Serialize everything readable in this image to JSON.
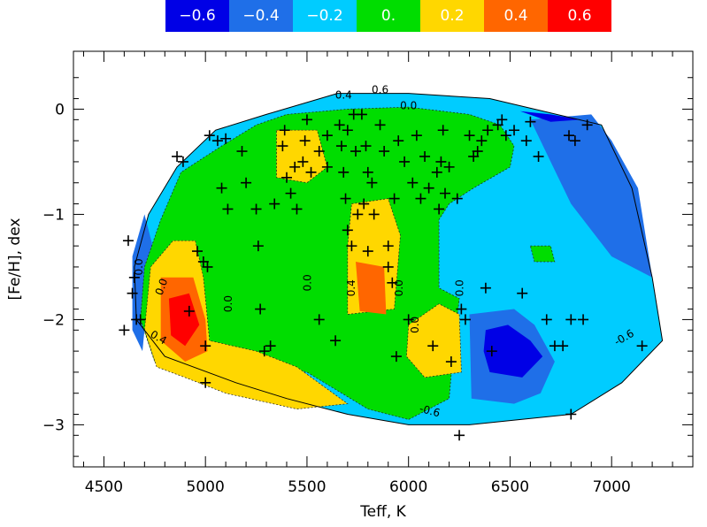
{
  "chart_data": {
    "type": "heatmap",
    "xlabel": "Teff, K",
    "ylabel": "[Fe/H], dex",
    "xlim": [
      4350,
      7400
    ],
    "ylim": [
      -3.4,
      0.55
    ],
    "x_ticks": [
      4500,
      5000,
      5500,
      6000,
      6500,
      7000
    ],
    "x_tick_labels": [
      "4500",
      "5000",
      "5500",
      "6000",
      "6500",
      "7000"
    ],
    "y_ticks": [
      0,
      -1,
      -2,
      -3
    ],
    "y_tick_labels": [
      "0",
      "−1",
      "−2",
      "−3"
    ],
    "legend": [
      {
        "label": "−0.6",
        "color": "#0000e6"
      },
      {
        "label": "−0.4",
        "color": "#1f6fe8"
      },
      {
        "label": "−0.2",
        "color": "#00ccff"
      },
      {
        "label": "0.",
        "color": "#00dd00"
      },
      {
        "label": "0.2",
        "color": "#ffd700"
      },
      {
        "label": "0.4",
        "color": "#ff6600"
      },
      {
        "label": "0.6",
        "color": "#ff0000"
      }
    ],
    "regions": [
      {
        "level": -0.2,
        "points": [
          [
            4660,
            -2.0
          ],
          [
            4650,
            -1.5
          ],
          [
            4720,
            -1.0
          ],
          [
            4860,
            -0.55
          ],
          [
            5050,
            -0.2
          ],
          [
            5300,
            -0.05
          ],
          [
            5650,
            0.15
          ],
          [
            6000,
            0.15
          ],
          [
            6400,
            0.1
          ],
          [
            6950,
            -0.15
          ],
          [
            7100,
            -0.75
          ],
          [
            7200,
            -1.6
          ],
          [
            7250,
            -2.2
          ],
          [
            7050,
            -2.6
          ],
          [
            6800,
            -2.9
          ],
          [
            6300,
            -3.0
          ],
          [
            6000,
            -3.0
          ],
          [
            5700,
            -2.9
          ],
          [
            5400,
            -2.75
          ],
          [
            5150,
            -2.6
          ],
          [
            4800,
            -2.35
          ]
        ]
      },
      {
        "level": -0.4,
        "points": [
          [
            4640,
            -2.1
          ],
          [
            4640,
            -1.4
          ],
          [
            4700,
            -1.0
          ],
          [
            4740,
            -1.3
          ],
          [
            4690,
            -2.3
          ]
        ]
      },
      {
        "level": -0.4,
        "points": [
          [
            6600,
            -0.1
          ],
          [
            6900,
            -0.05
          ],
          [
            7000,
            -0.3
          ],
          [
            7130,
            -0.75
          ],
          [
            7200,
            -1.6
          ],
          [
            7000,
            -1.4
          ],
          [
            6800,
            -0.9
          ],
          [
            6700,
            -0.5
          ]
        ]
      },
      {
        "level": -0.4,
        "points": [
          [
            6300,
            -1.95
          ],
          [
            6520,
            -1.9
          ],
          [
            6620,
            -2.05
          ],
          [
            6720,
            -2.4
          ],
          [
            6650,
            -2.7
          ],
          [
            6520,
            -2.8
          ],
          [
            6310,
            -2.75
          ]
        ]
      },
      {
        "level": -0.6,
        "points": [
          [
            6550,
            -0.02
          ],
          [
            6700,
            -0.05
          ],
          [
            6850,
            -0.1
          ],
          [
            6700,
            -0.12
          ]
        ]
      },
      {
        "level": -0.6,
        "points": [
          [
            6380,
            -2.1
          ],
          [
            6490,
            -2.05
          ],
          [
            6600,
            -2.2
          ],
          [
            6660,
            -2.35
          ],
          [
            6560,
            -2.55
          ],
          [
            6400,
            -2.5
          ],
          [
            6370,
            -2.3
          ]
        ]
      },
      {
        "level": 0.0,
        "points": [
          [
            4680,
            -2.0
          ],
          [
            4700,
            -1.5
          ],
          [
            4780,
            -1.05
          ],
          [
            4880,
            -0.6
          ],
          [
            5080,
            -0.35
          ],
          [
            5250,
            -0.15
          ],
          [
            5400,
            -0.05
          ],
          [
            5700,
            0.0
          ],
          [
            6000,
            0.02
          ],
          [
            6300,
            -0.05
          ],
          [
            6450,
            -0.15
          ],
          [
            6520,
            -0.35
          ],
          [
            6500,
            -0.55
          ],
          [
            6320,
            -0.75
          ],
          [
            6200,
            -0.9
          ],
          [
            6150,
            -1.05
          ],
          [
            6150,
            -1.7
          ],
          [
            6250,
            -1.8
          ],
          [
            6220,
            -2.3
          ],
          [
            6200,
            -2.75
          ],
          [
            6000,
            -2.95
          ],
          [
            5800,
            -2.85
          ],
          [
            5500,
            -2.5
          ],
          [
            5300,
            -2.4
          ],
          [
            5100,
            -2.4
          ],
          [
            4900,
            -2.5
          ],
          [
            4750,
            -2.4
          ]
        ]
      },
      {
        "level": 0.2,
        "points": [
          [
            4700,
            -2.1
          ],
          [
            4730,
            -1.5
          ],
          [
            4840,
            -1.25
          ],
          [
            4950,
            -1.25
          ],
          [
            4990,
            -1.6
          ],
          [
            5020,
            -2.2
          ],
          [
            5250,
            -2.3
          ],
          [
            5450,
            -2.45
          ],
          [
            5700,
            -2.8
          ],
          [
            5450,
            -2.85
          ],
          [
            5100,
            -2.7
          ],
          [
            4900,
            -2.55
          ],
          [
            4760,
            -2.45
          ]
        ]
      },
      {
        "level": 0.2,
        "points": [
          [
            5350,
            -0.2
          ],
          [
            5550,
            -0.2
          ],
          [
            5600,
            -0.55
          ],
          [
            5500,
            -0.7
          ],
          [
            5350,
            -0.65
          ]
        ]
      },
      {
        "level": 0.2,
        "points": [
          [
            5720,
            -0.9
          ],
          [
            5900,
            -0.85
          ],
          [
            5960,
            -1.2
          ],
          [
            5930,
            -1.9
          ],
          [
            5700,
            -1.95
          ],
          [
            5700,
            -1.3
          ]
        ]
      },
      {
        "level": 0.2,
        "points": [
          [
            6000,
            -2.05
          ],
          [
            6150,
            -1.85
          ],
          [
            6250,
            -1.95
          ],
          [
            6260,
            -2.5
          ],
          [
            6080,
            -2.55
          ],
          [
            5990,
            -2.35
          ]
        ]
      },
      {
        "level": 0.4,
        "points": [
          [
            4780,
            -1.6
          ],
          [
            4940,
            -1.6
          ],
          [
            5000,
            -2.0
          ],
          [
            5010,
            -2.3
          ],
          [
            4900,
            -2.4
          ],
          [
            4780,
            -2.2
          ]
        ]
      },
      {
        "level": 0.4,
        "points": [
          [
            5740,
            -1.45
          ],
          [
            5880,
            -1.5
          ],
          [
            5890,
            -1.95
          ],
          [
            5760,
            -1.92
          ]
        ]
      },
      {
        "level": 0.6,
        "points": [
          [
            4820,
            -1.8
          ],
          [
            4920,
            -1.75
          ],
          [
            4970,
            -2.05
          ],
          [
            4900,
            -2.25
          ],
          [
            4830,
            -2.15
          ]
        ]
      },
      {
        "level": 0.0,
        "points": [
          [
            6600,
            -1.3
          ],
          [
            6700,
            -1.3
          ],
          [
            6720,
            -1.45
          ],
          [
            6620,
            -1.45
          ]
        ]
      }
    ],
    "points": [
      [
        4620,
        -1.25
      ],
      [
        4640,
        -1.75
      ],
      [
        4650,
        -1.6
      ],
      [
        4660,
        -2.0
      ],
      [
        4600,
        -2.1
      ],
      [
        4680,
        -2.0
      ],
      [
        4860,
        -0.45
      ],
      [
        4890,
        -0.5
      ],
      [
        4920,
        -1.92
      ],
      [
        4960,
        -1.35
      ],
      [
        4990,
        -1.45
      ],
      [
        5010,
        -1.5
      ],
      [
        5000,
        -2.25
      ],
      [
        5000,
        -2.6
      ],
      [
        5020,
        -0.25
      ],
      [
        5060,
        -0.3
      ],
      [
        5080,
        -0.75
      ],
      [
        5100,
        -0.28
      ],
      [
        5110,
        -0.95
      ],
      [
        5180,
        -0.4
      ],
      [
        5200,
        -0.7
      ],
      [
        5250,
        -0.95
      ],
      [
        5260,
        -1.3
      ],
      [
        5270,
        -1.9
      ],
      [
        5290,
        -2.3
      ],
      [
        5320,
        -2.25
      ],
      [
        5340,
        -0.9
      ],
      [
        5380,
        -0.35
      ],
      [
        5390,
        -0.2
      ],
      [
        5400,
        -0.65
      ],
      [
        5420,
        -0.8
      ],
      [
        5440,
        -0.55
      ],
      [
        5450,
        -0.95
      ],
      [
        5480,
        -0.5
      ],
      [
        5490,
        -0.3
      ],
      [
        5500,
        -0.1
      ],
      [
        5520,
        -0.6
      ],
      [
        5560,
        -0.4
      ],
      [
        5560,
        -2.0
      ],
      [
        5600,
        -0.25
      ],
      [
        5600,
        -0.55
      ],
      [
        5640,
        -2.2
      ],
      [
        5660,
        -0.15
      ],
      [
        5670,
        -0.35
      ],
      [
        5680,
        -0.6
      ],
      [
        5690,
        -0.85
      ],
      [
        5700,
        -0.2
      ],
      [
        5700,
        -1.15
      ],
      [
        5720,
        -1.3
      ],
      [
        5730,
        -0.05
      ],
      [
        5740,
        -0.4
      ],
      [
        5750,
        -1.0
      ],
      [
        5770,
        -0.05
      ],
      [
        5780,
        -0.9
      ],
      [
        5790,
        -0.35
      ],
      [
        5800,
        -0.6
      ],
      [
        5800,
        -1.35
      ],
      [
        5820,
        -0.7
      ],
      [
        5830,
        -1.0
      ],
      [
        5860,
        -0.15
      ],
      [
        5880,
        -0.4
      ],
      [
        5900,
        -1.3
      ],
      [
        5900,
        -1.5
      ],
      [
        5920,
        -1.65
      ],
      [
        5930,
        -0.85
      ],
      [
        5940,
        -2.35
      ],
      [
        5950,
        -0.3
      ],
      [
        5980,
        -0.5
      ],
      [
        6000,
        -2.0
      ],
      [
        6020,
        -0.7
      ],
      [
        6040,
        -0.25
      ],
      [
        6060,
        -0.85
      ],
      [
        6080,
        -0.45
      ],
      [
        6100,
        -0.75
      ],
      [
        6120,
        -2.25
      ],
      [
        6140,
        -0.6
      ],
      [
        6150,
        -0.95
      ],
      [
        6160,
        -0.5
      ],
      [
        6170,
        -0.2
      ],
      [
        6180,
        -0.8
      ],
      [
        6200,
        -0.55
      ],
      [
        6210,
        -2.4
      ],
      [
        6240,
        -0.85
      ],
      [
        6260,
        -1.9
      ],
      [
        6280,
        -2.0
      ],
      [
        6300,
        -0.25
      ],
      [
        6320,
        -0.45
      ],
      [
        6340,
        -0.4
      ],
      [
        6360,
        -0.3
      ],
      [
        6380,
        -1.7
      ],
      [
        6390,
        -0.2
      ],
      [
        6410,
        -2.3
      ],
      [
        6440,
        -0.15
      ],
      [
        6460,
        -0.1
      ],
      [
        6480,
        -0.25
      ],
      [
        6520,
        -0.2
      ],
      [
        6560,
        -1.75
      ],
      [
        6580,
        -0.3
      ],
      [
        6600,
        -0.12
      ],
      [
        6640,
        -0.45
      ],
      [
        6680,
        -2.0
      ],
      [
        6720,
        -2.25
      ],
      [
        6760,
        -2.25
      ],
      [
        6790,
        -0.25
      ],
      [
        6800,
        -2.0
      ],
      [
        6800,
        -2.9
      ],
      [
        6820,
        -0.3
      ],
      [
        6860,
        -2.0
      ],
      [
        6880,
        -0.15
      ],
      [
        7150,
        -2.25
      ],
      [
        6250,
        -3.1
      ]
    ],
    "contour_labels": [
      {
        "text": "0.0",
        "x": 5520,
        "y": -1.65,
        "rot": -90
      },
      {
        "text": "0.0",
        "x": 5130,
        "y": -1.85,
        "rot": -90
      },
      {
        "text": "0.0",
        "x": 5970,
        "y": -1.7,
        "rot": -90
      },
      {
        "text": "0.0",
        "x": 6050,
        "y": -2.05,
        "rot": -90
      },
      {
        "text": "0.0",
        "x": 6270,
        "y": -1.7,
        "rot": -90
      },
      {
        "text": "0.0",
        "x": 6000,
        "y": 0.0,
        "rot": 0
      },
      {
        "text": "0.4",
        "x": 5735,
        "y": -1.7,
        "rot": -90
      },
      {
        "text": "0.0",
        "x": 4800,
        "y": -1.7,
        "rot": -70
      },
      {
        "text": "0.4",
        "x": 4760,
        "y": -2.2,
        "rot": 30
      },
      {
        "text": "0.0",
        "x": 4690,
        "y": -1.5,
        "rot": -90
      },
      {
        "text": "0.4",
        "x": 5680,
        "y": 0.1,
        "rot": 0
      },
      {
        "text": "0.6",
        "x": 5860,
        "y": 0.15,
        "rot": 0
      },
      {
        "text": "-0.6",
        "x": 7070,
        "y": -2.2,
        "rot": -30
      },
      {
        "text": "-0.6",
        "x": 6100,
        "y": -2.9,
        "rot": 15
      }
    ]
  }
}
